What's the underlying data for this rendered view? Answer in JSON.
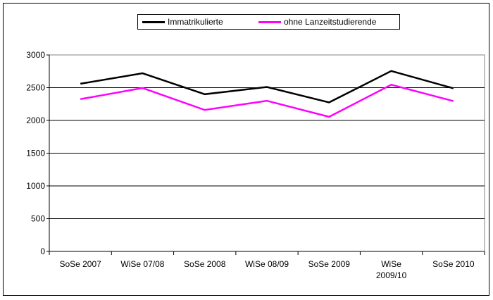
{
  "chart_data": {
    "type": "line",
    "categories": [
      "SoSe 2007",
      "WiSe 07/08",
      "SoSe 2008",
      "WiSe 08/09",
      "SoSe 2009",
      "WiSe 2009/10",
      "SoSe 2010"
    ],
    "category_lines": [
      [
        "SoSe 2007"
      ],
      [
        "WiSe 07/08"
      ],
      [
        "SoSe 2008"
      ],
      [
        "WiSe 08/09"
      ],
      [
        "SoSe 2009"
      ],
      [
        "WiSe",
        "2009/10"
      ],
      [
        "SoSe 2010"
      ]
    ],
    "series": [
      {
        "name": "Immatrikulierte",
        "color": "#000000",
        "values": [
          2560,
          2720,
          2400,
          2510,
          2275,
          2755,
          2490
        ]
      },
      {
        "name": "ohne Lanzeitstudierende",
        "color": "#ff00ff",
        "values": [
          2325,
          2495,
          2160,
          2300,
          2055,
          2545,
          2295
        ]
      }
    ],
    "ylim": [
      0,
      3000
    ],
    "yticks": [
      0,
      500,
      1000,
      1500,
      2000,
      2500,
      3000
    ],
    "grid": true,
    "legend_position": "top"
  }
}
